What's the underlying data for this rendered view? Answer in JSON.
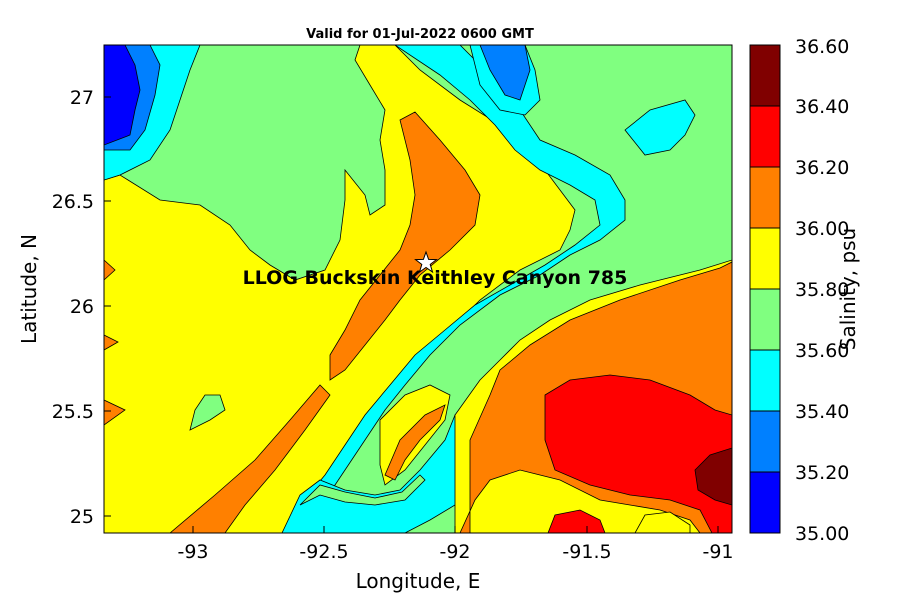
{
  "title": "Valid for 01-Jul-2022 0600 GMT",
  "map": {
    "xlabel": "Longitude, E",
    "ylabel": "Latitude, N",
    "xlim": [
      -93.35,
      -90.95
    ],
    "ylim": [
      24.9,
      27.25
    ],
    "xticks": [
      "-93",
      "-92.5",
      "-92",
      "-91.5",
      "-91"
    ],
    "yticks": [
      "25",
      "25.5",
      "26",
      "26.5",
      "27"
    ],
    "station": {
      "label": "LLOG Buckskin Keithley Canyon 785",
      "lon": -92.1,
      "lat": 26.2
    }
  },
  "colorbar": {
    "label": "Salinity, psu",
    "ticks": [
      "35.00",
      "35.20",
      "35.40",
      "35.60",
      "35.80",
      "36.00",
      "36.20",
      "36.40",
      "36.60"
    ],
    "colors": [
      "#0000ff",
      "#0080ff",
      "#00ffff",
      "#80ff80",
      "#ffff00",
      "#ff8000",
      "#ff0000",
      "#800000"
    ]
  },
  "colors": {
    "c35_00": "#0000ff",
    "c35_20": "#0080ff",
    "c35_40": "#00ffff",
    "c35_60": "#80ff80",
    "c35_80": "#ffff00",
    "c36_00": "#ff8000",
    "c36_20": "#ff0000",
    "c36_40": "#800000"
  }
}
